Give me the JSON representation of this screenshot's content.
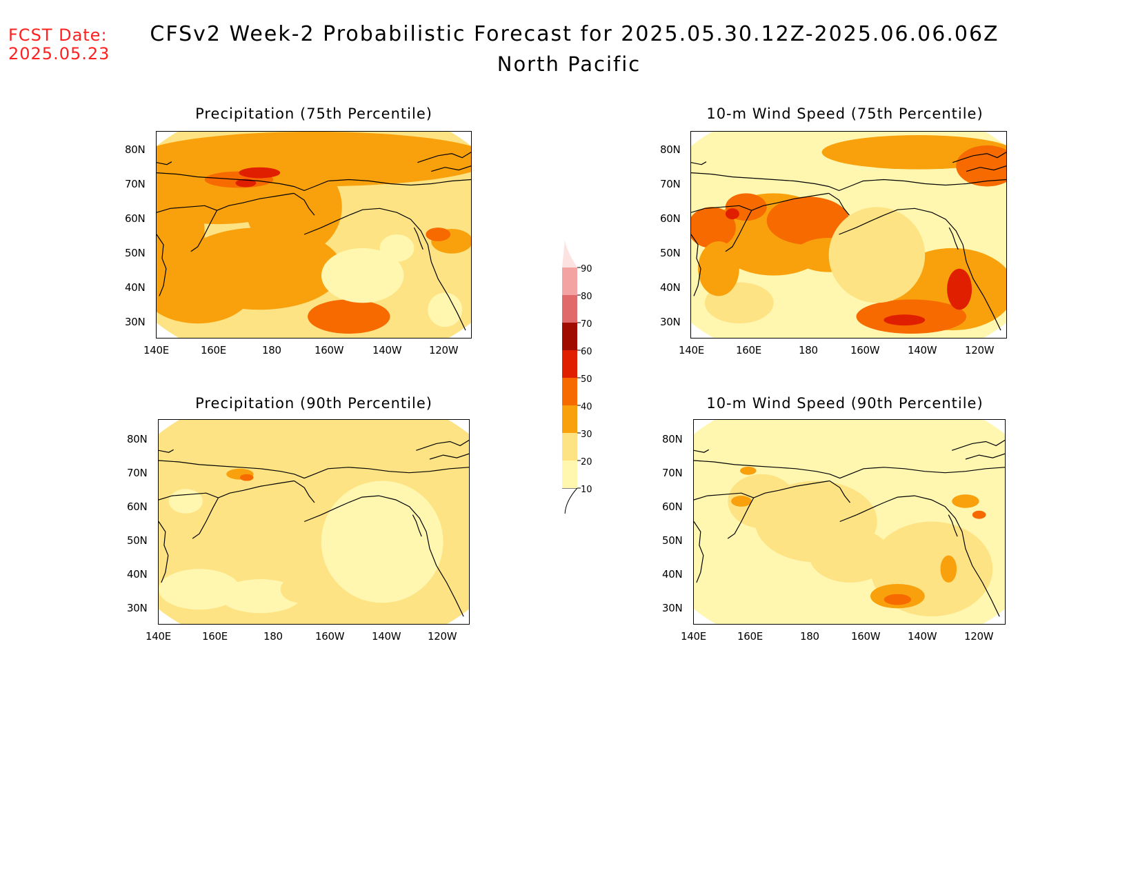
{
  "header": {
    "fcst_date_label": "FCST Date:",
    "fcst_date_value": "2025.05.23",
    "title": "CFSv2 Week-2 Probabilistic Forecast for 2025.05.30.12Z-2025.06.06.06Z",
    "subtitle": "North Pacific"
  },
  "panels": [
    {
      "id": "precip75",
      "title": "Precipitation (75th Percentile)"
    },
    {
      "id": "wind75",
      "title": "10-m Wind Speed (75th Percentile)"
    },
    {
      "id": "precip90",
      "title": "Precipitation (90th Percentile)"
    },
    {
      "id": "wind90",
      "title": "10-m Wind Speed (90th Percentile)"
    }
  ],
  "axes": {
    "lat_ticks": [
      "80N",
      "70N",
      "60N",
      "50N",
      "40N",
      "30N"
    ],
    "lon_ticks": [
      "140E",
      "160E",
      "180",
      "160W",
      "140W",
      "120W"
    ]
  },
  "colorbar": {
    "levels": [
      "10",
      "20",
      "30",
      "40",
      "50",
      "60",
      "70",
      "80",
      "90"
    ],
    "colors": [
      "#fff7b0",
      "#fde383",
      "#f9a10c",
      "#f66a00",
      "#e01f00",
      "#a00c00",
      "#e06a6a",
      "#f4a3a3",
      "#fde2e2"
    ]
  }
}
